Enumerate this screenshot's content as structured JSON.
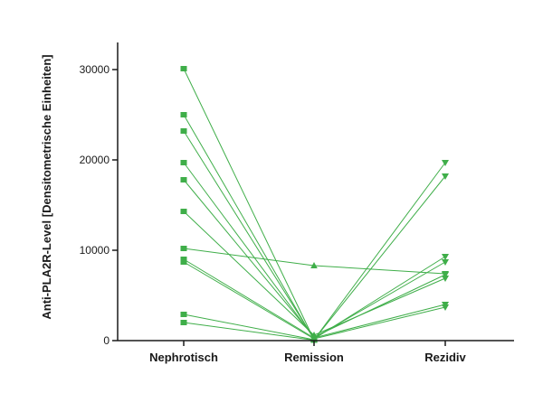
{
  "chart_data": {
    "type": "line",
    "title": "",
    "xlabel": "",
    "ylabel": "Anti-PLA2R-Level [Densitometrische Einheiten]",
    "categories": [
      "Nephrotisch",
      "Remission",
      "Rezidiv"
    ],
    "ylim": [
      0,
      33000
    ],
    "yticks": [
      0,
      10000,
      20000,
      30000
    ],
    "grid": false,
    "legend": "none",
    "series_color": "#3fae49",
    "markers": {
      "Nephrotisch": "square",
      "Remission": "triangle-up",
      "Rezidiv": "triangle-down"
    },
    "series": [
      {
        "values": [
          30100,
          100,
          19700
        ]
      },
      {
        "values": [
          25000,
          100,
          18200
        ]
      },
      {
        "values": [
          23200,
          200,
          9300
        ]
      },
      {
        "values": [
          19700,
          300,
          8700
        ]
      },
      {
        "values": [
          17800,
          400,
          7300
        ]
      },
      {
        "values": [
          14300,
          600,
          6900
        ]
      },
      {
        "values": [
          10200,
          8300,
          7400
        ]
      },
      {
        "values": [
          9000,
          300,
          4000
        ]
      },
      {
        "values": [
          8700,
          200,
          3700
        ]
      },
      {
        "values": [
          2900,
          100,
          null
        ]
      },
      {
        "values": [
          2000,
          50,
          null
        ]
      }
    ]
  }
}
